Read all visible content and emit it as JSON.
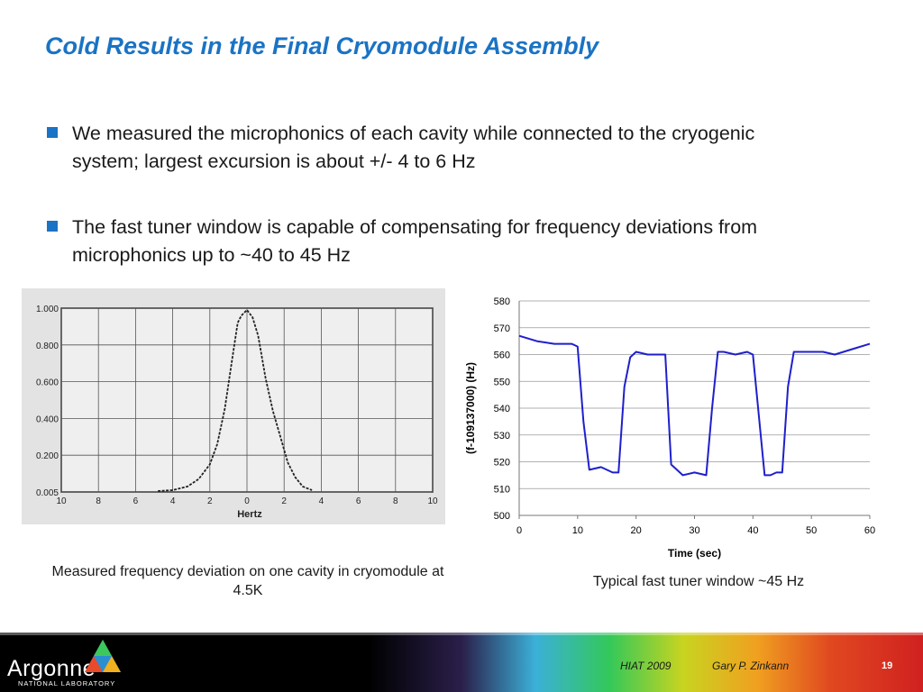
{
  "slide": {
    "title": "Cold Results in the Final Cryomodule Assembly",
    "bullets": [
      "We measured the microphonics of each cavity while connected to the cryogenic system; largest excursion is about +/- 4 to 6 Hz",
      "The fast tuner window is capable of compensating for frequency deviations from microphonics up to ~40 to 45 Hz"
    ],
    "caption_left": "Measured frequency deviation on one cavity in cryomodule at 4.5K",
    "caption_right": "Typical fast tuner window ~45 Hz"
  },
  "footer": {
    "logo": "Argonne",
    "logo_sub": "NATIONAL LABORATORY",
    "conference": "HIAT 2009",
    "author": "Gary P. Zinkann",
    "page": "19"
  },
  "colors": {
    "title": "#1a73c4",
    "bullet": "#1a73c4",
    "series": "#1f1fcc"
  },
  "chart_data": [
    {
      "type": "line",
      "title": "",
      "xlabel": "Hertz",
      "ylabel": "",
      "xlim": [
        -10,
        10
      ],
      "ylim": [
        0,
        1.0
      ],
      "x_ticks": [
        "10",
        "8",
        "6",
        "4",
        "2",
        "0",
        "2",
        "4",
        "6",
        "8",
        "10"
      ],
      "y_ticks": [
        "0.005",
        "0.200",
        "0.400",
        "0.600",
        "0.800",
        "1.000"
      ],
      "grid": true,
      "x": [
        -4.8,
        -4.0,
        -3.2,
        -2.6,
        -2.0,
        -1.6,
        -1.2,
        -0.8,
        -0.5,
        -0.3,
        0.0,
        0.3,
        0.6,
        1.0,
        1.4,
        1.8,
        2.2,
        2.6,
        3.0,
        3.5
      ],
      "values": [
        0.005,
        0.01,
        0.03,
        0.07,
        0.15,
        0.26,
        0.45,
        0.72,
        0.92,
        0.96,
        0.99,
        0.95,
        0.85,
        0.62,
        0.44,
        0.3,
        0.16,
        0.08,
        0.03,
        0.01
      ]
    },
    {
      "type": "line",
      "title": "",
      "xlabel": "Time (sec)",
      "ylabel": "(f-109137000) (Hz)",
      "xlim": [
        0,
        60
      ],
      "ylim": [
        500,
        580
      ],
      "x_ticks": [
        "0",
        "10",
        "20",
        "30",
        "40",
        "50",
        "60"
      ],
      "y_ticks": [
        "500",
        "510",
        "520",
        "530",
        "540",
        "550",
        "560",
        "570",
        "580"
      ],
      "grid": true,
      "x": [
        0,
        3,
        6,
        9,
        10,
        11,
        12,
        14,
        16,
        17,
        18,
        19,
        20,
        22,
        24,
        25,
        26,
        28,
        30,
        32,
        33,
        34,
        35,
        37,
        39,
        40,
        42,
        43,
        44,
        45,
        46,
        47,
        48,
        50,
        52,
        54,
        57,
        60
      ],
      "values": [
        567,
        565,
        564,
        564,
        563,
        535,
        517,
        518,
        516,
        516,
        548,
        559,
        561,
        560,
        560,
        560,
        519,
        515,
        516,
        515,
        540,
        561,
        561,
        560,
        561,
        560,
        515,
        515,
        516,
        516,
        548,
        561,
        561,
        561,
        561,
        560,
        562,
        564
      ]
    }
  ]
}
